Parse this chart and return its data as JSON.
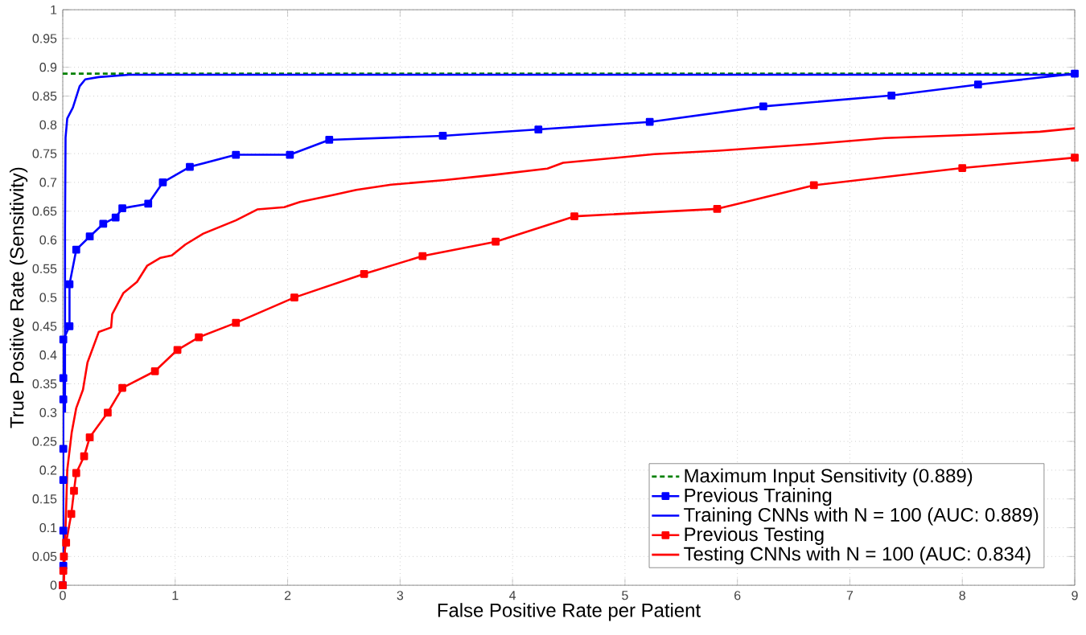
{
  "chart_data": {
    "type": "line",
    "xlabel": "False Positive Rate per Patient",
    "ylabel": "True Positive Rate (Sensitivity)",
    "xlim": [
      0,
      9
    ],
    "ylim": [
      0,
      1
    ],
    "xticks": [
      0,
      1,
      2,
      3,
      4,
      5,
      6,
      7,
      8,
      9
    ],
    "yticks": [
      0,
      0.05,
      0.1,
      0.15,
      0.2,
      0.25,
      0.3,
      0.35,
      0.4,
      0.45,
      0.5,
      0.55,
      0.6,
      0.65,
      0.7,
      0.75,
      0.8,
      0.85,
      0.9,
      0.95,
      1
    ],
    "grid": true,
    "legend": "bottom right",
    "series": [
      {
        "name": "Maximum Input Sensitivity (0.889)",
        "color": "#008000",
        "line_style": "dashed",
        "marker": "none",
        "x": [
          0,
          9
        ],
        "values": [
          0.889,
          0.889
        ]
      },
      {
        "name": "Previous Training",
        "color": "#0000ff",
        "line_style": "solid",
        "marker": "square",
        "x": [
          0,
          0.005,
          0.005,
          0.005,
          0.005,
          0.005,
          0.005,
          0.005,
          0.06,
          0.06,
          0.12,
          0.24,
          0.36,
          0.47,
          0.53,
          0.76,
          0.89,
          1.13,
          1.54,
          2.02,
          2.37,
          3.38,
          4.23,
          5.22,
          6.23,
          7.37,
          8.14,
          9
        ],
        "values": [
          0,
          0.034,
          0.095,
          0.183,
          0.237,
          0.323,
          0.36,
          0.427,
          0.45,
          0.523,
          0.583,
          0.606,
          0.628,
          0.639,
          0.655,
          0.663,
          0.7,
          0.727,
          0.748,
          0.748,
          0.774,
          0.781,
          0.792,
          0.805,
          0.832,
          0.851,
          0.87,
          0.889
        ]
      },
      {
        "name": "Training CNNs with N = 100 (AUC: 0.889)",
        "color": "#0000ff",
        "line_style": "solid",
        "marker": "none",
        "x": [
          0.02,
          0.02,
          0.025,
          0.04,
          0.09,
          0.15,
          0.2,
          0.32,
          0.59,
          9
        ],
        "values": [
          0.3,
          0.62,
          0.778,
          0.811,
          0.83,
          0.867,
          0.879,
          0.883,
          0.887,
          0.887
        ]
      },
      {
        "name": "Previous Testing",
        "color": "#ff0000",
        "line_style": "solid",
        "marker": "square",
        "x": [
          0,
          0.005,
          0.01,
          0.03,
          0.076,
          0.1,
          0.12,
          0.19,
          0.24,
          0.4,
          0.53,
          0.82,
          1.02,
          1.21,
          1.54,
          2.06,
          2.68,
          3.2,
          3.85,
          4.55,
          5.82,
          6.68,
          8.0,
          9
        ],
        "values": [
          0,
          0.025,
          0.05,
          0.074,
          0.124,
          0.164,
          0.195,
          0.224,
          0.257,
          0.3,
          0.343,
          0.372,
          0.409,
          0.431,
          0.456,
          0.5,
          0.541,
          0.572,
          0.597,
          0.641,
          0.654,
          0.695,
          0.725,
          0.743
        ]
      },
      {
        "name": "Testing CNNs with N = 100 (AUC: 0.834)",
        "color": "#ff0000",
        "line_style": "solid",
        "marker": "none",
        "x": [
          0.01,
          0.04,
          0.08,
          0.12,
          0.18,
          0.22,
          0.32,
          0.43,
          0.44,
          0.54,
          0.66,
          0.75,
          0.87,
          0.97,
          1.09,
          1.25,
          1.54,
          1.73,
          1.97,
          2.11,
          2.4,
          2.61,
          2.92,
          3.4,
          3.83,
          4.31,
          4.45,
          5.26,
          5.83,
          6.69,
          7.31,
          8.12,
          8.69,
          9
        ],
        "values": [
          0,
          0.2,
          0.266,
          0.308,
          0.34,
          0.387,
          0.44,
          0.448,
          0.471,
          0.508,
          0.527,
          0.555,
          0.569,
          0.573,
          0.592,
          0.611,
          0.634,
          0.653,
          0.657,
          0.666,
          0.678,
          0.687,
          0.696,
          0.704,
          0.713,
          0.724,
          0.734,
          0.749,
          0.755,
          0.767,
          0.777,
          0.783,
          0.788,
          0.794
        ]
      }
    ]
  }
}
